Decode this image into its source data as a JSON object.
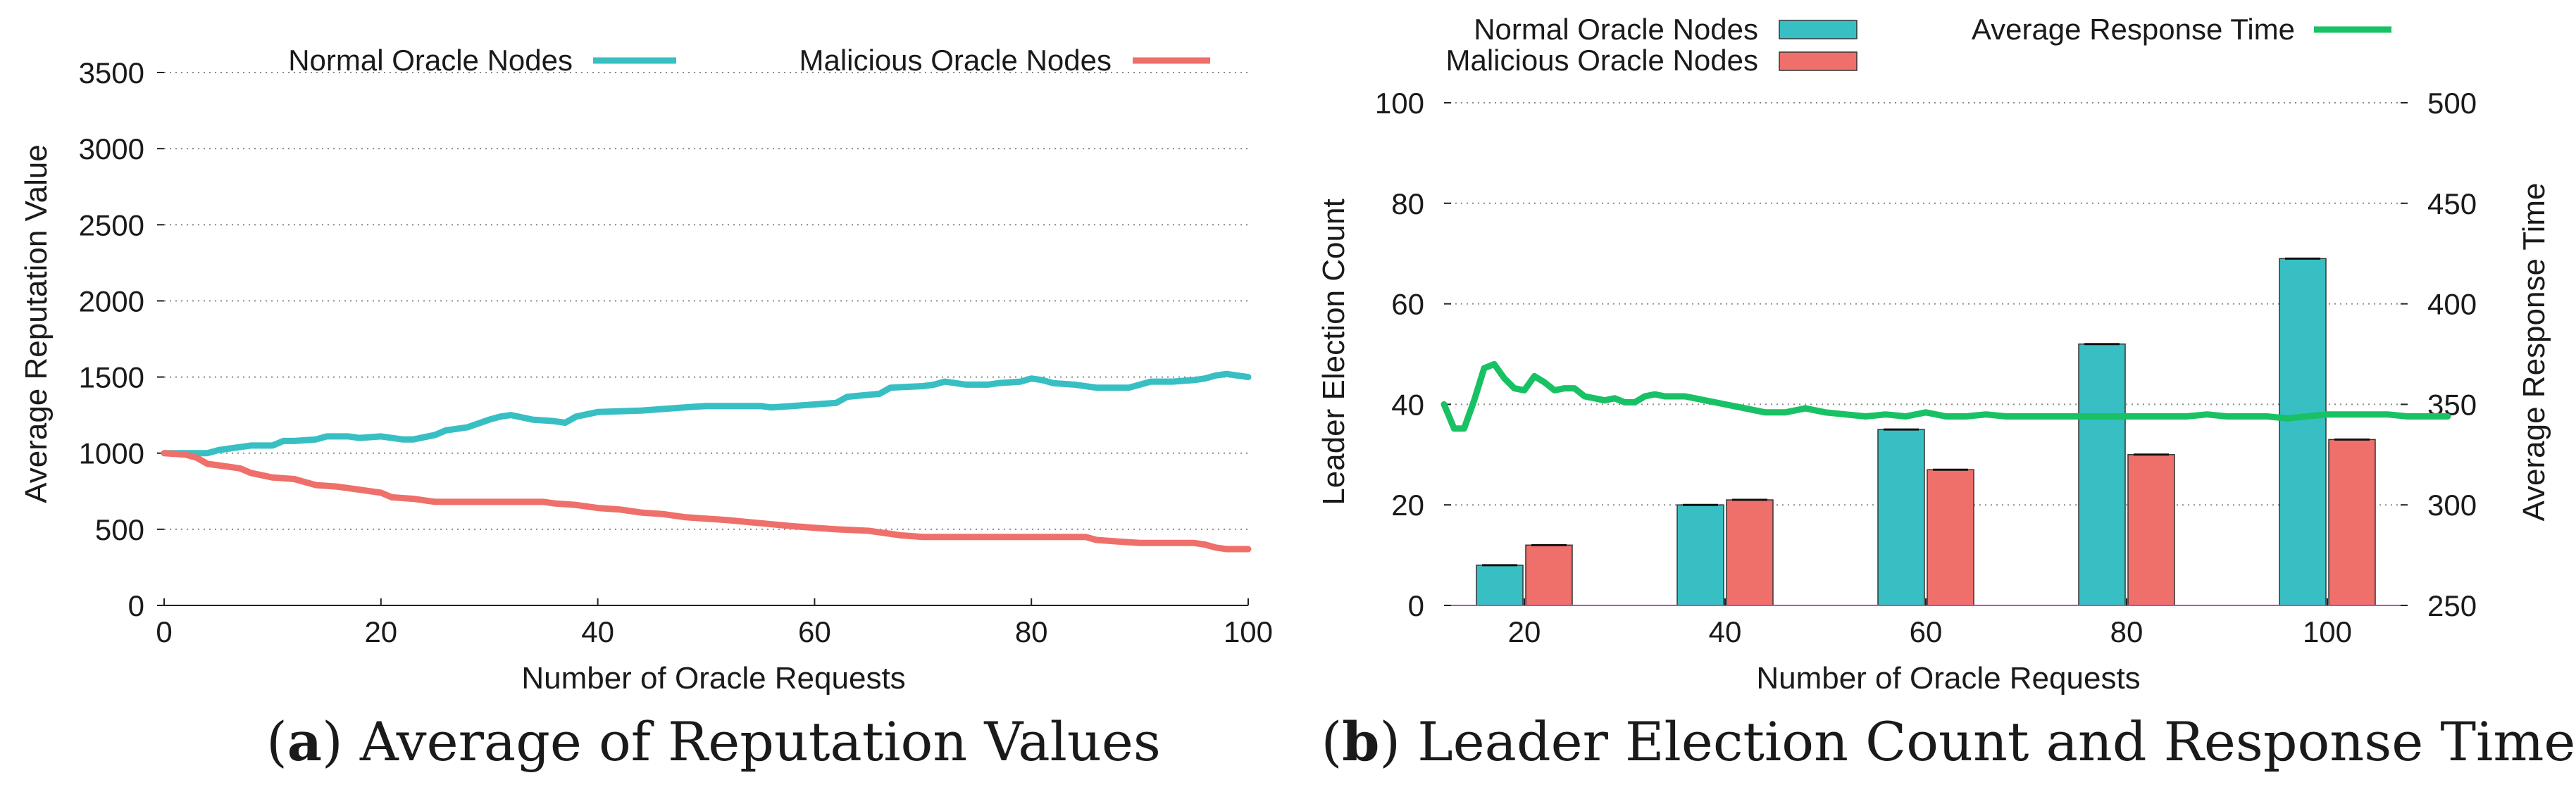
{
  "colors": {
    "normal": "#38bfc3",
    "malicious": "#ef6f6a",
    "response": "#19c165",
    "grid": "#8a8a8a",
    "axis": "#222222",
    "baseline": "#cc44cc"
  },
  "captions": {
    "a": {
      "letter": "a",
      "text": " Average of Reputation Values"
    },
    "b": {
      "letter": "b",
      "text": " Leader Election Count and Response Time"
    }
  },
  "chart_data": [
    {
      "type": "line",
      "id": "a",
      "xlabel": "Number of Oracle Requests",
      "ylabel": "Average Reputation Value",
      "xlim": [
        0,
        100
      ],
      "ylim": [
        0,
        3500
      ],
      "xticks": [
        0,
        20,
        40,
        60,
        80,
        100
      ],
      "yticks": [
        0,
        500,
        1000,
        1500,
        2000,
        2500,
        3000,
        3500
      ],
      "grid": "horizontal dotted",
      "legend_position": "top",
      "series": [
        {
          "name": "Normal Oracle Nodes",
          "x": [
            0,
            2,
            4,
            5,
            6,
            8,
            10,
            11,
            12,
            14,
            15,
            17,
            18,
            20,
            22,
            23,
            25,
            26,
            28,
            30,
            31,
            32,
            34,
            36,
            37,
            38,
            40,
            44,
            46,
            48,
            50,
            55,
            56,
            58,
            60,
            62,
            63,
            66,
            67,
            70,
            71,
            72,
            74,
            76,
            77,
            79,
            80,
            81,
            82,
            84,
            86,
            89,
            90,
            91,
            93,
            95,
            96,
            97,
            98,
            99,
            100
          ],
          "y": [
            1000,
            1000,
            1000,
            1020,
            1030,
            1050,
            1050,
            1080,
            1080,
            1090,
            1110,
            1110,
            1100,
            1110,
            1090,
            1090,
            1120,
            1150,
            1170,
            1220,
            1240,
            1250,
            1220,
            1210,
            1200,
            1240,
            1270,
            1280,
            1290,
            1300,
            1310,
            1310,
            1300,
            1310,
            1320,
            1330,
            1370,
            1390,
            1430,
            1440,
            1450,
            1470,
            1450,
            1450,
            1460,
            1470,
            1490,
            1480,
            1460,
            1450,
            1430,
            1430,
            1450,
            1470,
            1470,
            1480,
            1490,
            1510,
            1520,
            1510,
            1500
          ]
        },
        {
          "name": "Malicious Oracle Nodes",
          "x": [
            0,
            2,
            3,
            4,
            5,
            7,
            8,
            10,
            12,
            13,
            14,
            16,
            18,
            20,
            21,
            23,
            25,
            30,
            35,
            36,
            38,
            40,
            42,
            44,
            46,
            48,
            50,
            52,
            55,
            58,
            60,
            62,
            65,
            66,
            68,
            70,
            75,
            80,
            85,
            86,
            88,
            90,
            95,
            96,
            97,
            98,
            100
          ],
          "y": [
            1000,
            990,
            970,
            930,
            920,
            900,
            870,
            840,
            830,
            810,
            790,
            780,
            760,
            740,
            710,
            700,
            680,
            680,
            680,
            670,
            660,
            640,
            630,
            610,
            600,
            580,
            570,
            560,
            540,
            520,
            510,
            500,
            490,
            480,
            460,
            450,
            450,
            450,
            450,
            430,
            420,
            410,
            410,
            400,
            380,
            370,
            370
          ]
        }
      ]
    },
    {
      "type": "bar",
      "id": "b",
      "xlabel": "Number of Oracle Requests",
      "ylabel": "Leader Election Count",
      "y2label": "Average Response Time",
      "categories": [
        "20",
        "40",
        "60",
        "80",
        "100"
      ],
      "ylim": [
        0,
        100
      ],
      "y2lim": [
        250,
        500
      ],
      "yticks": [
        0,
        20,
        40,
        60,
        80,
        100
      ],
      "y2ticks": [
        250,
        300,
        350,
        400,
        450,
        500
      ],
      "grid": "horizontal dotted",
      "legend_position": "top",
      "series": [
        {
          "name": "Normal Oracle Nodes",
          "values": [
            8,
            20,
            35,
            52,
            69
          ]
        },
        {
          "name": "Malicious Oracle Nodes",
          "values": [
            12,
            21,
            27,
            30,
            33
          ]
        }
      ],
      "line_series": {
        "name": "Average Response Time",
        "axis": "y2",
        "x": [
          12,
          13,
          14,
          15,
          16,
          17,
          18,
          19,
          20,
          21,
          22,
          23,
          24,
          25,
          26,
          27,
          28,
          29,
          30,
          31,
          32,
          33,
          34,
          35,
          36,
          37,
          38,
          39,
          40,
          42,
          44,
          46,
          48,
          50,
          52,
          54,
          56,
          58,
          60,
          62,
          64,
          66,
          68,
          70,
          72,
          74,
          76,
          78,
          80,
          82,
          84,
          86,
          88,
          90,
          92,
          94,
          96,
          98,
          100,
          102,
          104,
          106,
          108,
          110,
          112
        ],
        "y": [
          350,
          338,
          338,
          352,
          368,
          370,
          363,
          358,
          357,
          364,
          361,
          357,
          358,
          358,
          354,
          353,
          352,
          353,
          351,
          351,
          354,
          355,
          354,
          354,
          354,
          353,
          352,
          351,
          350,
          348,
          346,
          346,
          348,
          346,
          345,
          344,
          345,
          344,
          346,
          344,
          344,
          345,
          344,
          344,
          344,
          344,
          344,
          344,
          344,
          344,
          344,
          344,
          345,
          344,
          344,
          344,
          343,
          344,
          345,
          345,
          345,
          345,
          344,
          344,
          344
        ]
      }
    }
  ]
}
